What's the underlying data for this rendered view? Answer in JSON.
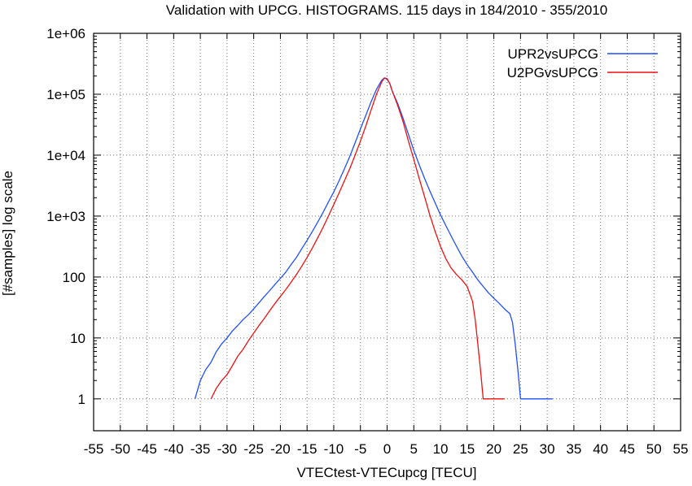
{
  "chart_data": {
    "type": "line",
    "title": "Validation with UPCG. HISTOGRAMS. 115 days in 184/2010 - 355/2010",
    "xlabel": "VTECtest-VTECupcg [TECU]",
    "ylabel": "[#samples] log scale",
    "xlim": [
      -55,
      55
    ],
    "ylim": [
      0.3,
      1000000
    ],
    "yscale": "log",
    "grid": true,
    "legend_position": "top-right",
    "x_ticks": [
      -55,
      -50,
      -45,
      -40,
      -35,
      -30,
      -25,
      -20,
      -15,
      -10,
      -5,
      0,
      5,
      10,
      15,
      20,
      25,
      30,
      35,
      40,
      45,
      50,
      55
    ],
    "x_tick_labels": [
      "-55",
      "-50",
      "-45",
      "-40",
      "-35",
      "-30",
      "-25",
      "-20",
      "-15",
      "-10",
      "-5",
      "0",
      "5",
      "10",
      "15",
      "20",
      "25",
      "30",
      "35",
      "40",
      "45",
      "50",
      "55"
    ],
    "y_ticks": [
      1,
      10,
      100,
      1000,
      10000,
      100000,
      1000000
    ],
    "y_tick_labels": [
      "1",
      "10",
      "100",
      "1e+03",
      "1e+04",
      "1e+05",
      "1e+06"
    ],
    "series": [
      {
        "name": "UPR2vsUPCG",
        "color": "#1f4fff",
        "x": [
          -36,
          -35,
          -34,
          -33,
          -32,
          -31,
          -30,
          -29,
          -28,
          -27,
          -26,
          -25,
          -24,
          -23,
          -22,
          -21,
          -20,
          -19,
          -18,
          -17,
          -16,
          -15,
          -14,
          -13,
          -12,
          -11,
          -10,
          -9,
          -8,
          -7,
          -6,
          -5,
          -4,
          -3,
          -2,
          -1,
          -0.5,
          0,
          0.5,
          1,
          2,
          3,
          4,
          5,
          6,
          7,
          8,
          9,
          10,
          11,
          12,
          13,
          14,
          15,
          16,
          17,
          18,
          19,
          20,
          21,
          22,
          23,
          23.5,
          24,
          24.5,
          25,
          26,
          27,
          28,
          29,
          30,
          31
        ],
        "y": [
          1,
          2,
          3,
          4,
          6,
          8,
          10,
          13,
          16,
          20,
          24,
          30,
          38,
          48,
          60,
          76,
          95,
          120,
          160,
          210,
          290,
          400,
          560,
          800,
          1150,
          1700,
          2500,
          3800,
          6000,
          9500,
          16000,
          27000,
          45000,
          75000,
          120000,
          170000,
          185000,
          175000,
          150000,
          110000,
          70000,
          40000,
          22000,
          12000,
          7000,
          4200,
          2600,
          1650,
          1050,
          700,
          470,
          320,
          220,
          160,
          120,
          90,
          70,
          55,
          45,
          37,
          30,
          25,
          18,
          8,
          3,
          1,
          1,
          1,
          1,
          1,
          1,
          1
        ]
      },
      {
        "name": "U2PGvsUPCG",
        "color": "#ee1111",
        "x": [
          -33,
          -32,
          -31,
          -30,
          -29,
          -28,
          -27,
          -26,
          -25,
          -24,
          -23,
          -22,
          -21,
          -20,
          -19,
          -18,
          -17,
          -16,
          -15,
          -14,
          -13,
          -12,
          -11,
          -10,
          -9,
          -8,
          -7,
          -6,
          -5,
          -4,
          -3,
          -2,
          -1,
          -0.5,
          0,
          0.5,
          1,
          2,
          3,
          4,
          5,
          6,
          7,
          8,
          9,
          10,
          11,
          12,
          13,
          14,
          15,
          16,
          16.5,
          17,
          17.5,
          18,
          19,
          20,
          21,
          22
        ],
        "y": [
          1,
          1.5,
          2,
          2.5,
          3.5,
          5,
          6.5,
          9,
          12,
          16,
          21,
          28,
          37,
          48,
          62,
          82,
          110,
          150,
          210,
          300,
          440,
          650,
          1000,
          1550,
          2400,
          3800,
          6000,
          10000,
          17000,
          30000,
          55000,
          100000,
          160000,
          185000,
          180000,
          150000,
          110000,
          65000,
          35000,
          17000,
          8500,
          4200,
          2100,
          1050,
          560,
          320,
          200,
          140,
          110,
          90,
          70,
          40,
          20,
          8,
          3,
          1,
          1,
          1,
          1,
          1
        ]
      }
    ]
  }
}
